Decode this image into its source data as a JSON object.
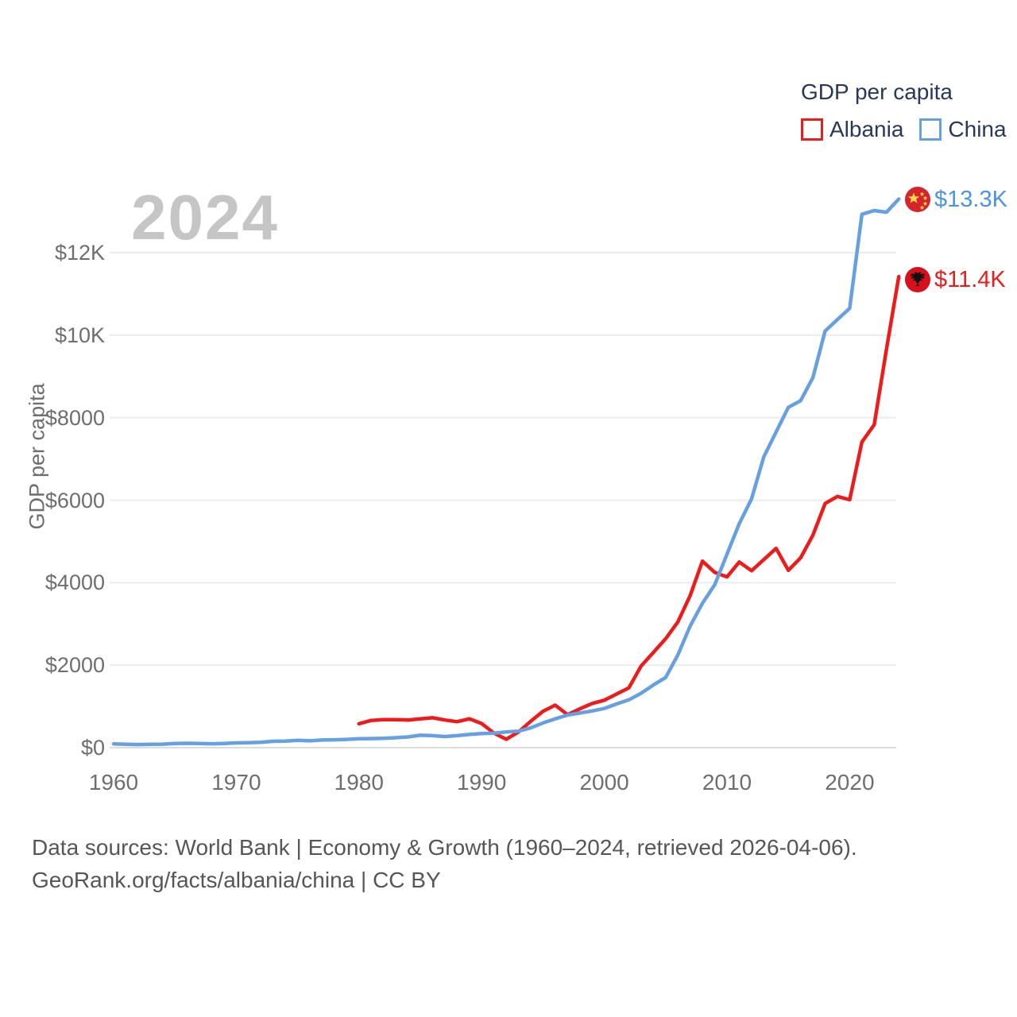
{
  "watermark": "2024",
  "legend": {
    "title": "GDP per capita",
    "items": [
      {
        "label": "Albania",
        "color": "#ee1b1b"
      },
      {
        "label": "China",
        "color": "#67a0e2"
      }
    ]
  },
  "end_labels": [
    {
      "series": "China",
      "value_label": "$13.3K",
      "color": "#4a94e8",
      "flag_icon": "china-flag"
    },
    {
      "series": "Albania",
      "value_label": "$11.4K",
      "color": "#ee1b1b",
      "flag_icon": "albania-flag"
    }
  ],
  "footer": {
    "line1": "Data sources: World Bank | Economy & Growth (1960–2024, retrieved 2026-04-06).",
    "line2": "GeoRank.org/facts/albania/china | CC BY"
  },
  "chart_data": {
    "type": "line",
    "title": "GDP per capita",
    "xlabel": "",
    "ylabel": "GDP per capita",
    "grid": "horizontal",
    "legend_position": "top-right",
    "xlim": [
      1960,
      2024
    ],
    "ylim": [
      0,
      13800
    ],
    "x_ticks": [
      1960,
      1970,
      1980,
      1990,
      2000,
      2010,
      2020
    ],
    "y_ticks": [
      {
        "value": 0,
        "label": "$0"
      },
      {
        "value": 2000,
        "label": "$2000"
      },
      {
        "value": 4000,
        "label": "$4000"
      },
      {
        "value": 6000,
        "label": "$6000"
      },
      {
        "value": 8000,
        "label": "$8000"
      },
      {
        "value": 10000,
        "label": "$10K"
      },
      {
        "value": 12000,
        "label": "$12K"
      }
    ],
    "series": [
      {
        "name": "Albania",
        "color": "#ee1b1b",
        "x": [
          1980,
          1981,
          1982,
          1983,
          1984,
          1985,
          1986,
          1987,
          1988,
          1989,
          1990,
          1991,
          1992,
          1993,
          1994,
          1995,
          1996,
          1997,
          1998,
          1999,
          2000,
          2001,
          2002,
          2003,
          2004,
          2005,
          2006,
          2007,
          2008,
          2009,
          2010,
          2011,
          2012,
          2013,
          2014,
          2015,
          2016,
          2017,
          2018,
          2019,
          2020,
          2021,
          2022,
          2023,
          2024
        ],
        "values": [
          580,
          660,
          680,
          680,
          670,
          700,
          725,
          670,
          630,
          700,
          585,
          355,
          205,
          380,
          640,
          880,
          1030,
          800,
          940,
          1070,
          1150,
          1300,
          1450,
          1980,
          2310,
          2640,
          3050,
          3690,
          4520,
          4250,
          4140,
          4500,
          4290,
          4560,
          4830,
          4300,
          4600,
          5150,
          5920,
          6090,
          6010,
          7410,
          7830,
          9660,
          11420
        ]
      },
      {
        "name": "China",
        "color": "#67a0e2",
        "x": [
          1960,
          1961,
          1962,
          1963,
          1964,
          1965,
          1966,
          1967,
          1968,
          1969,
          1970,
          1971,
          1972,
          1973,
          1974,
          1975,
          1976,
          1977,
          1978,
          1979,
          1980,
          1981,
          1982,
          1983,
          1984,
          1985,
          1986,
          1987,
          1988,
          1989,
          1990,
          1991,
          1992,
          1993,
          1994,
          1995,
          1996,
          1997,
          1998,
          1999,
          2000,
          2001,
          2002,
          2003,
          2004,
          2005,
          2006,
          2007,
          2008,
          2009,
          2010,
          2011,
          2012,
          2013,
          2014,
          2015,
          2016,
          2017,
          2018,
          2019,
          2020,
          2021,
          2022,
          2023,
          2024
        ],
        "values": [
          90,
          80,
          75,
          80,
          85,
          100,
          105,
          100,
          95,
          100,
          115,
          120,
          130,
          155,
          160,
          180,
          165,
          185,
          190,
          200,
          215,
          220,
          225,
          240,
          260,
          300,
          290,
          270,
          290,
          320,
          340,
          350,
          380,
          400,
          480,
          600,
          700,
          790,
          840,
          890,
          950,
          1060,
          1160,
          1320,
          1520,
          1700,
          2250,
          2950,
          3500,
          3950,
          4690,
          5430,
          6030,
          7050,
          7650,
          8250,
          8410,
          8970,
          10100,
          10380,
          10650,
          12930,
          13020,
          12980,
          13300
        ]
      }
    ],
    "end_annotations": [
      {
        "series": "China",
        "year": 2024,
        "value": 13300,
        "label": "$13.3K"
      },
      {
        "series": "Albania",
        "year": 2024,
        "value": 11420,
        "label": "$11.4K"
      }
    ]
  }
}
